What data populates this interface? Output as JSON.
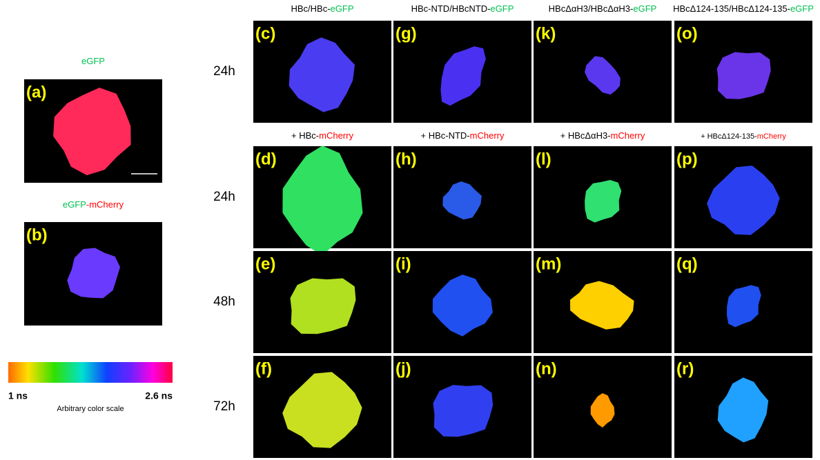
{
  "left_panels": [
    {
      "title_parts": [
        "eGFP"
      ],
      "label": "(a)"
    },
    {
      "title_parts": [
        "eGFP",
        "-mCherry"
      ],
      "label": "(b)"
    }
  ],
  "scale": {
    "min_label": "1 ns",
    "max_label": "2.6 ns",
    "caption": "Arbitrary color scale"
  },
  "header_rows": [
    [
      [
        "HBc/HBc-",
        "eGFP"
      ],
      [
        "HBc-NTD/HBcNTD-",
        "eGFP"
      ],
      [
        "HBcΔαH3/HBcΔαH3-",
        "eGFP"
      ],
      [
        "HBcΔ124-135/HBcΔ124-135-",
        "eGFP"
      ]
    ],
    [
      [
        "+ HBc-",
        "mCherry"
      ],
      [
        "+ HBc-NTD-",
        "mCherry"
      ],
      [
        "+ HBcΔαH3-",
        "mCherry"
      ],
      [
        "+ HBcΔ124-135-",
        "mCherry"
      ]
    ]
  ],
  "row_labels": [
    "24h",
    "24h",
    "48h",
    "72h"
  ],
  "grid_labels": [
    [
      "(c)",
      "(g)",
      "(k)",
      "(o)"
    ],
    [
      "(d)",
      "(h)",
      "(l)",
      "(p)"
    ],
    [
      "(e)",
      "(i)",
      "(m)",
      "(q)"
    ],
    [
      "(f)",
      "(j)",
      "(n)",
      "(r)"
    ]
  ]
}
